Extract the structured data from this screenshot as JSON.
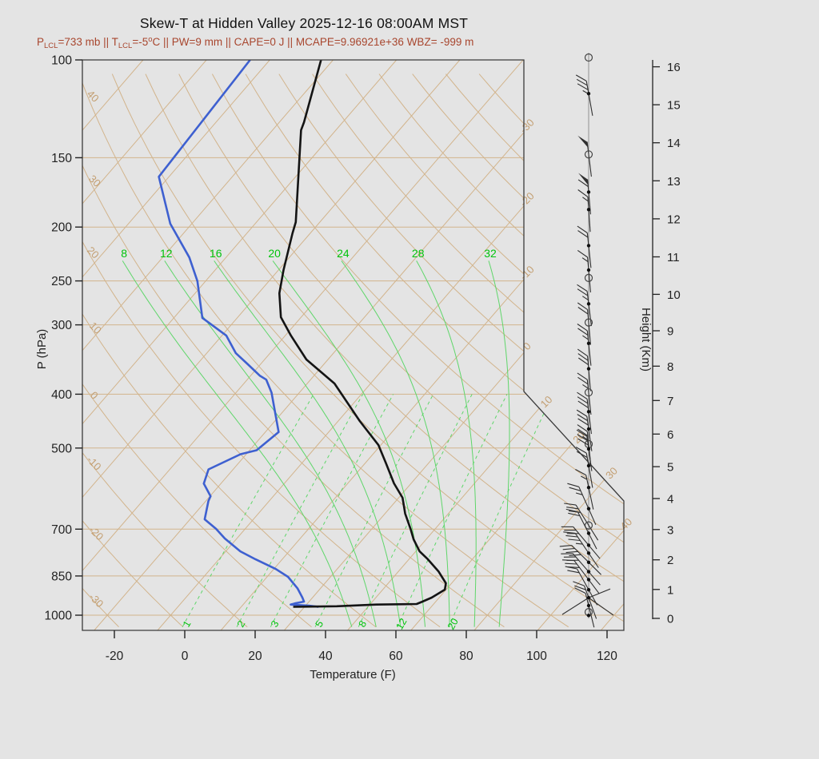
{
  "title": "Skew-T at Hidden Valley 2025-12-16 08:00AM MST",
  "subtitle_parts": [
    [
      "t",
      "P"
    ],
    [
      "sub",
      "LCL"
    ],
    [
      "t",
      "=733 mb || T"
    ],
    [
      "sub",
      "LCL"
    ],
    [
      "t",
      "=-5"
    ],
    [
      "sup",
      "o"
    ],
    [
      "t",
      "C || PW=9 mm || CAPE=0 J || MCAPE=9.96921e+36 WBZ= -999 m"
    ]
  ],
  "stats": {
    "p_lcl": "733 mb",
    "t_lcl": "-5 C",
    "pw": "9 mm",
    "cape": "0 J",
    "mcape": "9.96921e+36",
    "wbz": "-999 m"
  },
  "colors": {
    "background": "#E4E4E4",
    "border": "#3A3A3A",
    "tan_line": "#D2B48C",
    "tan_label": "#C39F72",
    "green_line": "#5FD66A",
    "green_label": "#00C30B",
    "temperature": "#141414",
    "dewpoint": "#3E60D0",
    "subtitle": "#A8462E",
    "axis": "#222222",
    "barb": "#2F2F2F",
    "staff": "#909090"
  },
  "axes": {
    "pressure": {
      "title": "P (hPa)",
      "ticks": [
        100,
        150,
        200,
        250,
        300,
        400,
        500,
        700,
        850,
        1000
      ],
      "gridlines": [
        100,
        150,
        200,
        250,
        300,
        400,
        500,
        700,
        850,
        1000
      ]
    },
    "temperature": {
      "title": "Temperature (F)",
      "ticks": [
        -20,
        0,
        20,
        40,
        60,
        80,
        100,
        120
      ]
    },
    "height": {
      "title": "Height (Km)",
      "ticks": [
        0,
        1,
        2,
        3,
        4,
        5,
        6,
        7,
        8,
        9,
        10,
        11,
        12,
        13,
        14,
        15,
        16
      ]
    }
  },
  "background_lines": {
    "isotherms_c": {
      "min": -130,
      "max": 50,
      "step": 10,
      "right_labels": [
        -30,
        -20,
        -10,
        0,
        10,
        20,
        30,
        40
      ]
    },
    "dry_adiabats_c": {
      "min": -30,
      "max": 160,
      "step": 10
    },
    "moist_adiabats_c": [
      8,
      12,
      16,
      20,
      24,
      28,
      32
    ],
    "mixing_ratio_gkg": [
      1,
      2,
      3,
      5,
      8,
      12,
      20
    ]
  },
  "chart_data": {
    "type": "skewt-log-p",
    "pressure_unit": "hPa",
    "temperature_unit": "C",
    "pressure_range": [
      100,
      1050
    ],
    "temperature_axis_range_f": [
      -29,
      125
    ],
    "temperature_profile": [
      [
        100,
        -71.9
      ],
      [
        129.5,
        -66.1
      ],
      [
        133.8,
        -65.5
      ],
      [
        195.9,
        -53.8
      ],
      [
        205.2,
        -52.8
      ],
      [
        239.0,
        -49.2
      ],
      [
        263.1,
        -46.7
      ],
      [
        290.6,
        -43.2
      ],
      [
        313.7,
        -39.1
      ],
      [
        346.4,
        -33.4
      ],
      [
        382.6,
        -25.7
      ],
      [
        447.1,
        -16.6
      ],
      [
        493.6,
        -10.4
      ],
      [
        532.7,
        -6.7
      ],
      [
        578.9,
        -2.7
      ],
      [
        614.4,
        0.6
      ],
      [
        656.6,
        3.2
      ],
      [
        699.0,
        6.1
      ],
      [
        729.9,
        8.0
      ],
      [
        767.4,
        10.6
      ],
      [
        793.3,
        13.0
      ],
      [
        833.8,
        16.3
      ],
      [
        875.9,
        19.1
      ],
      [
        899.4,
        19.8
      ],
      [
        929.7,
        18.8
      ],
      [
        945.2,
        17.9
      ],
      [
        954.7,
        17.3
      ],
      [
        956.9,
        11.0
      ],
      [
        963.5,
        5.0
      ],
      [
        965.7,
        -1.8
      ]
    ],
    "dewpoint_profile": [
      [
        100,
        -83.1
      ],
      [
        162.3,
        -81.6
      ],
      [
        197.2,
        -73.4
      ],
      [
        226.8,
        -65.8
      ],
      [
        250.2,
        -61.3
      ],
      [
        291.5,
        -55.5
      ],
      [
        313.7,
        -49.3
      ],
      [
        337.4,
        -45.4
      ],
      [
        353.3,
        -42.0
      ],
      [
        370.6,
        -38.5
      ],
      [
        376.5,
        -37.0
      ],
      [
        397.3,
        -34.4
      ],
      [
        467.9,
        -27.9
      ],
      [
        504.5,
        -28.9
      ],
      [
        512.9,
        -30.9
      ],
      [
        546.2,
        -33.9
      ],
      [
        579.4,
        -32.7
      ],
      [
        610.6,
        -29.9
      ],
      [
        622.7,
        -29.6
      ],
      [
        671.9,
        -27.7
      ],
      [
        699.0,
        -24.6
      ],
      [
        727.6,
        -21.9
      ],
      [
        767.4,
        -17.7
      ],
      [
        793.3,
        -14.2
      ],
      [
        825.6,
        -9.7
      ],
      [
        853.0,
        -6.7
      ],
      [
        895.3,
        -3.6
      ],
      [
        929.7,
        -1.6
      ],
      [
        945.2,
        -0.8
      ],
      [
        952.0,
        -2.0
      ],
      [
        957.0,
        -2.5
      ],
      [
        961.0,
        0.5
      ],
      [
        966.0,
        2.2
      ]
    ],
    "wind_barbs": [
      {
        "p": 99,
        "marker": "circle"
      },
      {
        "p": 115,
        "marker": "dot",
        "full": 3,
        "half": 1,
        "tilt": 10
      },
      {
        "p": 148,
        "marker": "circle",
        "pennants": 1,
        "tilt": 7
      },
      {
        "p": 173,
        "marker": "dot",
        "pennants": 1,
        "full": 1,
        "tilt": 5
      },
      {
        "p": 186,
        "marker": "dot",
        "full": 1,
        "half": 1,
        "tilt": 4
      },
      {
        "p": 216,
        "marker": "dot",
        "full": 2,
        "tilt": 6
      },
      {
        "p": 239,
        "marker": "dot",
        "full": 1,
        "half": 1,
        "tilt": 5
      },
      {
        "p": 247,
        "marker": "circle"
      },
      {
        "p": 275,
        "marker": "dot",
        "full": 2,
        "half": 1,
        "tilt": 7
      },
      {
        "p": 297,
        "marker": "circle",
        "full": 2,
        "tilt": 5
      },
      {
        "p": 324,
        "marker": "dot",
        "full": 2,
        "half": 1,
        "tilt": 6
      },
      {
        "p": 360,
        "marker": "dot",
        "full": 3,
        "tilt": 5
      },
      {
        "p": 397,
        "marker": "circle",
        "full": 2,
        "half": 1,
        "tilt": 6
      },
      {
        "p": 430,
        "marker": "dot",
        "full": 3,
        "tilt": 7
      },
      {
        "p": 462,
        "marker": "dot",
        "full": 3,
        "tilt": 8
      },
      {
        "p": 492,
        "marker": "circle",
        "full": 2,
        "half": 1,
        "tilt": 6
      },
      {
        "p": 502,
        "marker": "dot",
        "full": 3,
        "tilt": 8
      },
      {
        "p": 538,
        "marker": "dot",
        "full": 2,
        "tilt": 10
      },
      {
        "p": 589,
        "marker": "dot",
        "full": 1,
        "half": 1,
        "tilt": 12
      },
      {
        "p": 643,
        "marker": "dot",
        "full": 2,
        "half": 1,
        "tilt": 24
      },
      {
        "p": 689,
        "marker": "circle",
        "full": 3,
        "tilt": 32
      },
      {
        "p": 712,
        "marker": "dot",
        "full": 2,
        "tilt": 27
      },
      {
        "p": 748,
        "marker": "dot",
        "full": 3,
        "tilt": 40
      },
      {
        "p": 773,
        "marker": "dot",
        "full": 3,
        "half": 1,
        "tilt": 34
      },
      {
        "p": 803,
        "marker": "dot",
        "full": 4,
        "tilt": 45
      },
      {
        "p": 835,
        "marker": "dot",
        "full": 3,
        "tilt": 41
      },
      {
        "p": 863,
        "marker": "dot",
        "full": 3,
        "tilt": 37
      },
      {
        "p": 900,
        "marker": "dot",
        "full": 2,
        "tilt": 29
      },
      {
        "p": 930,
        "marker": "dot",
        "full": 2,
        "tilt": 20,
        "rays": [
          [
            -33,
            21
          ],
          [
            31,
            22
          ],
          [
            27,
            -11
          ]
        ]
      },
      {
        "p": 961,
        "marker": "dot",
        "full": 1,
        "tilt": 14
      },
      {
        "p": 987,
        "marker": "circle"
      },
      {
        "p": 1001,
        "marker": "dot"
      }
    ]
  }
}
